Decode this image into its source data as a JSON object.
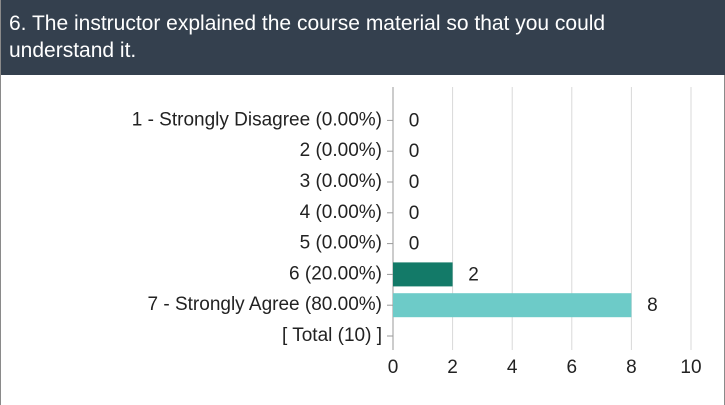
{
  "chart_data": {
    "type": "bar",
    "orientation": "horizontal",
    "title": "6. The instructor explained the course material so that you could understand it.",
    "categories": [
      "1 - Strongly Disagree (0.00%)",
      "2 (0.00%)",
      "3 (0.00%)",
      "4 (0.00%)",
      "5 (0.00%)",
      "6 (20.00%)",
      "7 - Strongly Agree (80.00%)",
      "[ Total (10) ]"
    ],
    "values": [
      0,
      0,
      0,
      0,
      0,
      2,
      8,
      null
    ],
    "colors": [
      "#137a68",
      "#137a68",
      "#137a68",
      "#137a68",
      "#137a68",
      "#137a68",
      "#6dcbc8",
      "#6dcbc8"
    ],
    "xlim": [
      0,
      10
    ],
    "xticks": [
      0,
      2,
      4,
      6,
      8,
      10
    ],
    "grid": true
  }
}
